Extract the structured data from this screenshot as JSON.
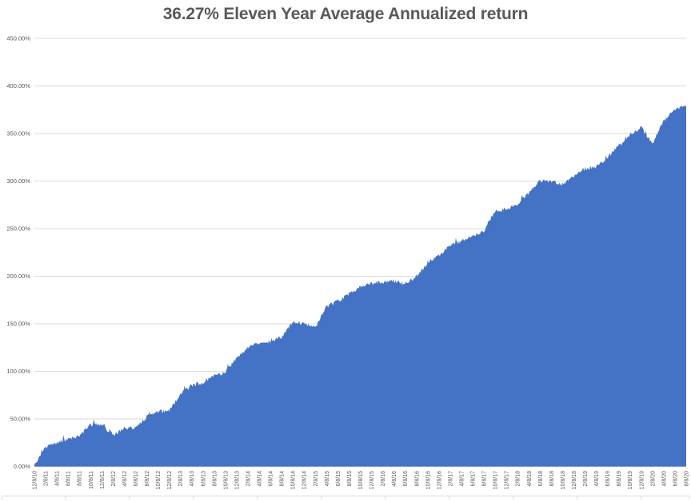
{
  "chart_data": {
    "type": "area",
    "title": "36.27% Eleven Year Average Annualized return",
    "categories": [
      "12/8/10",
      "2/8/11",
      "4/8/11",
      "6/8/11",
      "8/8/11",
      "10/8/11",
      "12/8/11",
      "2/8/12",
      "4/8/12",
      "6/8/12",
      "8/8/12",
      "10/8/12",
      "12/8/12",
      "2/8/13",
      "4/8/13",
      "6/8/13",
      "8/8/13",
      "10/8/13",
      "12/8/13",
      "2/8/14",
      "4/8/14",
      "6/8/14",
      "8/8/14",
      "10/8/14",
      "12/8/14",
      "2/8/15",
      "4/8/15",
      "6/8/15",
      "8/8/15",
      "10/8/15",
      "12/8/15",
      "2/8/16",
      "4/8/16",
      "6/8/16",
      "8/8/16",
      "10/8/16",
      "12/8/16",
      "2/8/17",
      "4/8/17",
      "6/8/17",
      "8/8/17",
      "10/8/17",
      "12/8/17",
      "2/8/18",
      "4/8/18",
      "6/8/18",
      "8/8/18",
      "10/8/18",
      "12/8/18",
      "2/8/19",
      "4/8/19",
      "6/8/19",
      "8/8/19",
      "10/8/19",
      "12/8/19",
      "2/8/20",
      "4/8/20",
      "6/8/20",
      "8/8/20"
    ],
    "values": [
      2,
      20,
      25,
      29,
      32,
      44,
      44,
      33,
      40,
      40,
      52,
      58,
      58,
      76,
      85,
      88,
      95,
      99,
      114,
      125,
      130,
      131,
      136,
      152,
      150,
      146,
      168,
      174,
      181,
      188,
      193,
      193,
      195,
      192,
      200,
      214,
      222,
      232,
      237,
      242,
      248,
      268,
      271,
      276,
      288,
      300,
      300,
      296,
      305,
      313,
      315,
      325,
      337,
      349,
      356,
      340,
      363,
      375,
      380
    ],
    "value_unit": "%",
    "ylim": [
      0,
      450
    ],
    "y_tick_step": 50,
    "y_tick_labels": [
      "0.00%",
      "50.00%",
      "100.00%",
      "150.00%",
      "200.00%",
      "250.00%",
      "300.00%",
      "350.00%",
      "400.00%",
      "450.00%"
    ],
    "grid": true,
    "legend": "none",
    "colors": {
      "area_fill": "#4472C4",
      "gridline": "#D9D9D9",
      "baseline": "#BFBFBF",
      "axis_text": "#595959",
      "title_text": "#595959"
    }
  }
}
